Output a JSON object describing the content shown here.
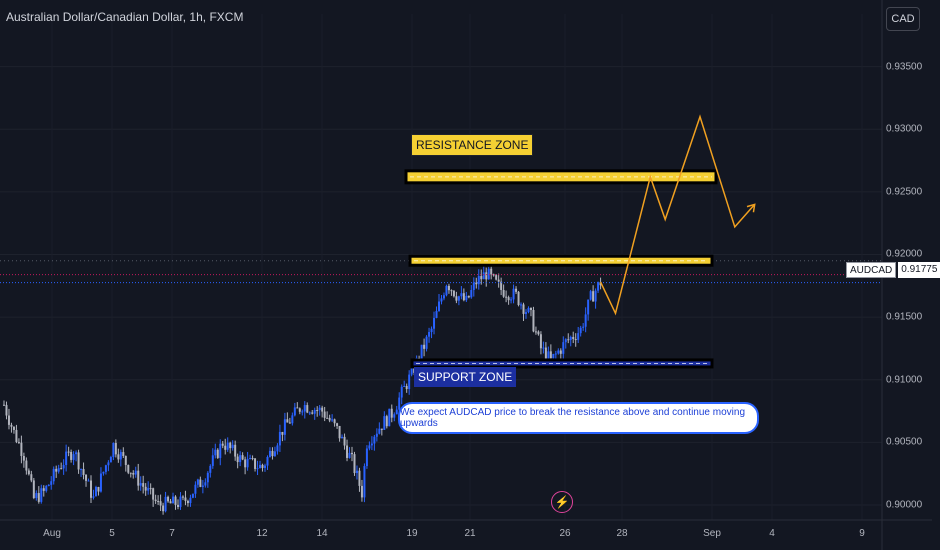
{
  "header": {
    "title": "Australian Dollar/Canadian Dollar, 1h, FXCM",
    "currency_button": "CAD"
  },
  "price_tag": {
    "symbol": "AUDCAD",
    "value": "0.91775"
  },
  "annotations": {
    "resistance_label": "RESISTANCE ZONE",
    "support_label": "SUPPORT ZONE",
    "note": "We expect AUDCAD price to break the resistance above and continue moving upwards"
  },
  "icons": {
    "event": "lightning-bolt-icon"
  },
  "colors": {
    "background": "#131722",
    "candle_up": "#2962ff",
    "candle_down": "#b2b5be",
    "resistance": "#f5d033",
    "support": "#1c2fa0",
    "projection": "#f0a020"
  },
  "chart_data": {
    "type": "candlestick",
    "symbol": "AUDCAD",
    "timeframe": "1h",
    "y_ticks": [
      "0.93500",
      "0.93000",
      "0.92500",
      "0.92000",
      "0.91500",
      "0.91000",
      "0.90500",
      "0.90000"
    ],
    "ylim": [
      0.8988,
      0.9392
    ],
    "x_ticks": [
      "Aug",
      "5",
      "7",
      "12",
      "14",
      "19",
      "21",
      "26",
      "28",
      "Sep",
      "4",
      "9"
    ],
    "price_path": [
      {
        "x": 0,
        "y": 0.908
      },
      {
        "x": 2,
        "y": 0.9058
      },
      {
        "x": 4,
        "y": 0.904
      },
      {
        "x": 6,
        "y": 0.9005
      },
      {
        "x": 8,
        "y": 0.901
      },
      {
        "x": 11,
        "y": 0.903
      },
      {
        "x": 14,
        "y": 0.9044
      },
      {
        "x": 18,
        "y": 0.9005
      },
      {
        "x": 22,
        "y": 0.9048
      },
      {
        "x": 26,
        "y": 0.9025
      },
      {
        "x": 31,
        "y": 0.9
      },
      {
        "x": 36,
        "y": 0.9002
      },
      {
        "x": 40,
        "y": 0.902
      },
      {
        "x": 44,
        "y": 0.905
      },
      {
        "x": 48,
        "y": 0.9035
      },
      {
        "x": 52,
        "y": 0.903
      },
      {
        "x": 56,
        "y": 0.906
      },
      {
        "x": 60,
        "y": 0.908
      },
      {
        "x": 64,
        "y": 0.9075
      },
      {
        "x": 67,
        "y": 0.906
      },
      {
        "x": 70,
        "y": 0.9035
      },
      {
        "x": 72,
        "y": 0.901
      },
      {
        "x": 73,
        "y": 0.905
      },
      {
        "x": 75,
        "y": 0.906
      },
      {
        "x": 78,
        "y": 0.9073
      },
      {
        "x": 82,
        "y": 0.9105
      },
      {
        "x": 86,
        "y": 0.914
      },
      {
        "x": 89,
        "y": 0.9178
      },
      {
        "x": 91,
        "y": 0.9168
      },
      {
        "x": 93,
        "y": 0.9162
      },
      {
        "x": 95,
        "y": 0.9178
      },
      {
        "x": 97,
        "y": 0.9185
      },
      {
        "x": 100,
        "y": 0.9172
      },
      {
        "x": 103,
        "y": 0.9167
      },
      {
        "x": 106,
        "y": 0.915
      },
      {
        "x": 108,
        "y": 0.9125
      },
      {
        "x": 110,
        "y": 0.9115
      },
      {
        "x": 113,
        "y": 0.913
      },
      {
        "x": 116,
        "y": 0.914
      },
      {
        "x": 118,
        "y": 0.9165
      },
      {
        "x": 120,
        "y": 0.9178
      }
    ],
    "levels": [
      {
        "name": "resistance-zone",
        "y": 0.9262
      },
      {
        "name": "resistance-level",
        "y": 0.9195
      },
      {
        "name": "support-level",
        "y": 0.9113
      }
    ],
    "projection": [
      {
        "x": 120,
        "y": 0.9178
      },
      {
        "x": 123,
        "y": 0.9153
      },
      {
        "x": 130,
        "y": 0.9262
      },
      {
        "x": 133,
        "y": 0.9228
      },
      {
        "x": 140,
        "y": 0.931
      },
      {
        "x": 147,
        "y": 0.9222
      },
      {
        "x": 151,
        "y": 0.924
      }
    ],
    "current_price": 0.91775
  }
}
